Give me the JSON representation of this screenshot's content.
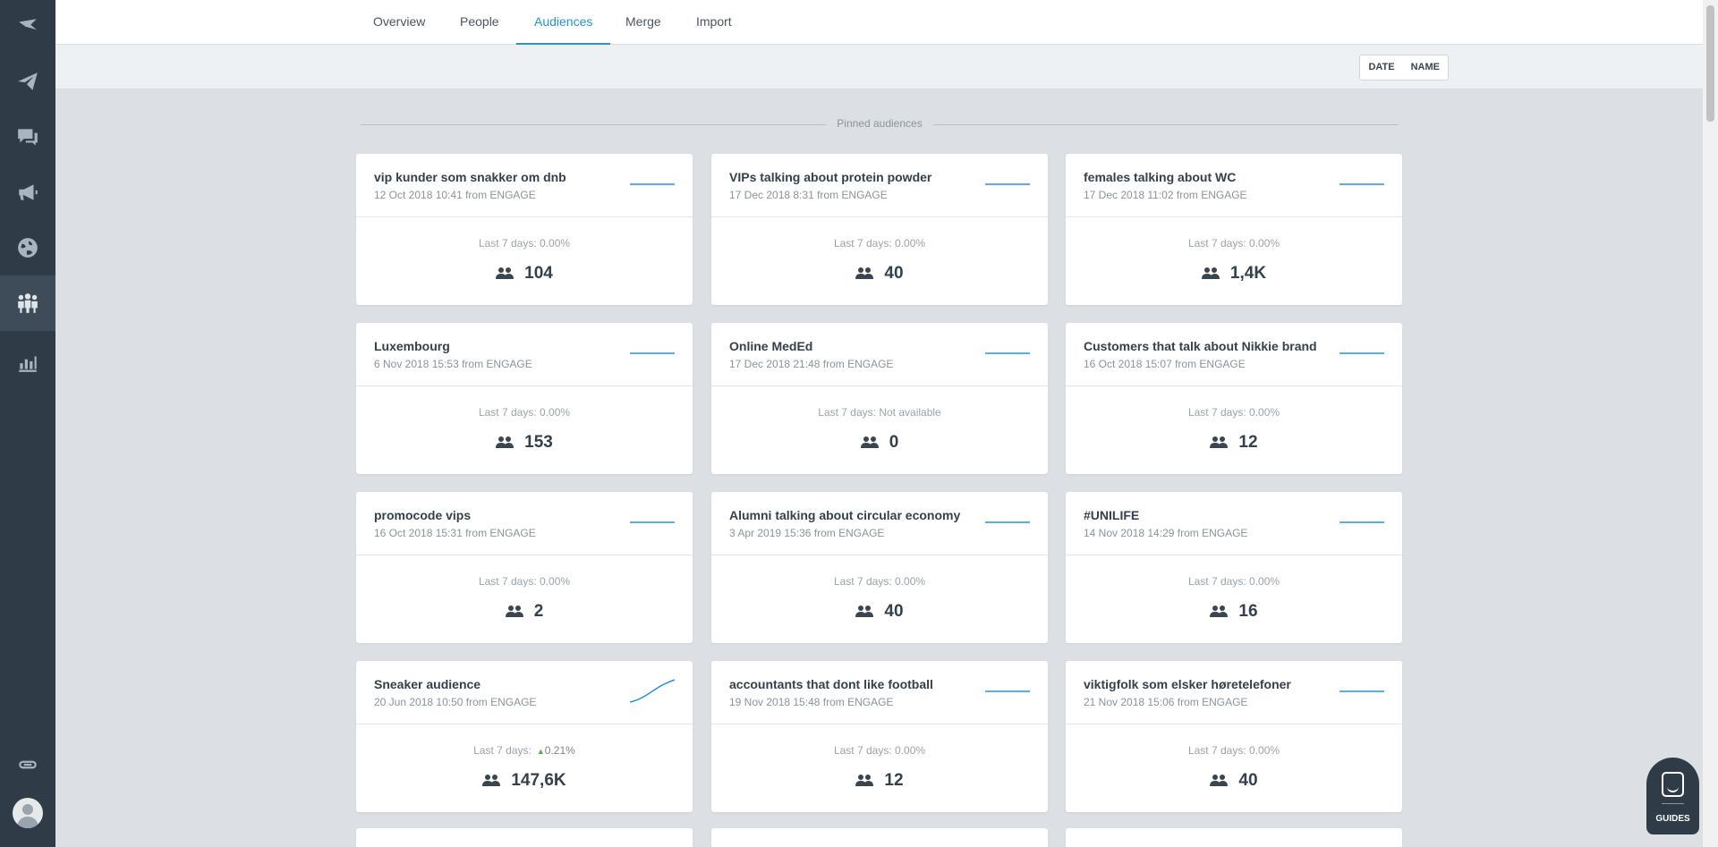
{
  "nav": {
    "tabs": [
      {
        "label": "Overview"
      },
      {
        "label": "People"
      },
      {
        "label": "Audiences"
      },
      {
        "label": "Merge"
      },
      {
        "label": "Import"
      }
    ],
    "active_tab": "Audiences"
  },
  "sort": {
    "date_label": "DATE",
    "name_label": "NAME"
  },
  "section": {
    "title": "Pinned audiences"
  },
  "colors": {
    "accent": "#2196d3",
    "sidebar": "#2f3c48",
    "positive": "#4caf50"
  },
  "cards": [
    {
      "title": "vip kunder som snakker om dnb",
      "subtitle": "12 Oct 2018 10:41 from ENGAGE",
      "growth_label": "Last 7 days:",
      "growth_value": "0.00%",
      "count": "104"
    },
    {
      "title": "VIPs talking about protein powder",
      "subtitle": "17 Dec 2018 8:31 from ENGAGE",
      "growth_label": "Last 7 days:",
      "growth_value": "0.00%",
      "count": "40"
    },
    {
      "title": "females talking about WC",
      "subtitle": "17 Dec 2018 11:02 from ENGAGE",
      "growth_label": "Last 7 days:",
      "growth_value": "0.00%",
      "count": "1,4K"
    },
    {
      "title": "Luxembourg",
      "subtitle": "6 Nov 2018 15:53 from ENGAGE",
      "growth_label": "Last 7 days:",
      "growth_value": "0.00%",
      "count": "153"
    },
    {
      "title": "Online MedEd",
      "subtitle": "17 Dec 2018 21:48 from ENGAGE",
      "growth_label": "Last 7 days:",
      "growth_value": "Not available",
      "count": "0"
    },
    {
      "title": "Customers that talk about Nikkie brand",
      "subtitle": "16 Oct 2018 15:07 from ENGAGE",
      "growth_label": "Last 7 days:",
      "growth_value": "0.00%",
      "count": "12"
    },
    {
      "title": "promocode vips",
      "subtitle": "16 Oct 2018 15:31 from ENGAGE",
      "growth_label": "Last 7 days:",
      "growth_value": "0.00%",
      "count": "2"
    },
    {
      "title": "Alumni talking about circular economy",
      "subtitle": "3 Apr 2019 15:36 from ENGAGE",
      "growth_label": "Last 7 days:",
      "growth_value": "0.00%",
      "count": "40"
    },
    {
      "title": "#UNILIFE",
      "subtitle": "14 Nov 2018 14:29 from ENGAGE",
      "growth_label": "Last 7 days:",
      "growth_value": "0.00%",
      "count": "16"
    },
    {
      "title": "Sneaker audience",
      "subtitle": "20 Jun 2018 10:50 from ENGAGE",
      "growth_label": "Last 7 days:",
      "growth_value": "0.21%",
      "count": "147,6K"
    },
    {
      "title": "accountants that dont like football",
      "subtitle": "19 Nov 2018 15:48 from ENGAGE",
      "growth_label": "Last 7 days:",
      "growth_value": "0.00%",
      "count": "12"
    },
    {
      "title": "viktigfolk som elsker høretelefoner",
      "subtitle": "21 Nov 2018 15:06 from ENGAGE",
      "growth_label": "Last 7 days:",
      "growth_value": "0.00%",
      "count": "40"
    }
  ],
  "guides": {
    "label": "GUIDES"
  }
}
